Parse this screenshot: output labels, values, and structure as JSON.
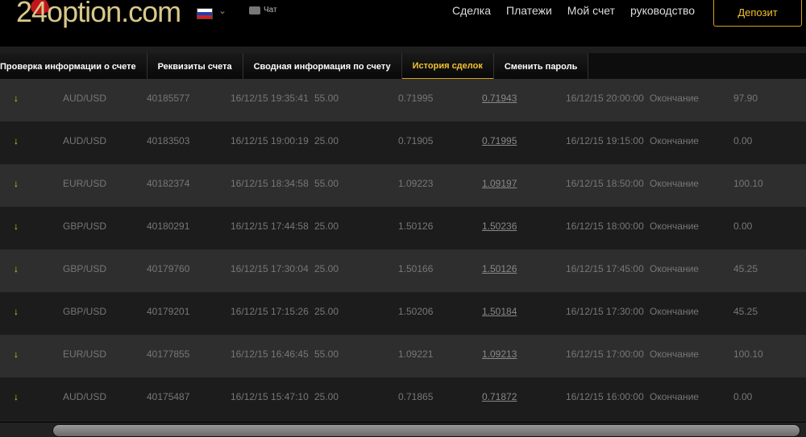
{
  "header": {
    "logo": "24option.com",
    "language_flag": "ru",
    "chat": "Чат",
    "nav": [
      "Сделка",
      "Платежи",
      "Мой счет",
      "руководство"
    ],
    "deposit": "Депозит"
  },
  "tabs": [
    {
      "label": "Проверка информации о счете",
      "active": false
    },
    {
      "label": "Реквизиты счета",
      "active": false
    },
    {
      "label": "Сводная информация по счету",
      "active": false
    },
    {
      "label": "История сделок",
      "active": true
    },
    {
      "label": "Сменить пароль",
      "active": false
    }
  ],
  "colors": {
    "accent": "#f2c230",
    "header_bg": "#000000"
  },
  "trades": [
    {
      "direction": "down",
      "asset": "AUD/USD",
      "id": "40185577",
      "open_time": "16/12/15 19:35:41",
      "amount": "55.00",
      "open_rate": "0.71995",
      "close_rate": "0.71943",
      "expiry": "16/12/15 20:00:00",
      "type": "Окончание",
      "payout": "97.90"
    },
    {
      "direction": "down",
      "asset": "AUD/USD",
      "id": "40183503",
      "open_time": "16/12/15 19:00:19",
      "amount": "25.00",
      "open_rate": "0.71905",
      "close_rate": "0.71995",
      "expiry": "16/12/15 19:15:00",
      "type": "Окончание",
      "payout": "0.00"
    },
    {
      "direction": "down",
      "asset": "EUR/USD",
      "id": "40182374",
      "open_time": "16/12/15 18:34:58",
      "amount": "55.00",
      "open_rate": "1.09223",
      "close_rate": "1.09197",
      "expiry": "16/12/15 18:50:00",
      "type": "Окончание",
      "payout": "100.10"
    },
    {
      "direction": "down",
      "asset": "GBP/USD",
      "id": "40180291",
      "open_time": "16/12/15 17:44:58",
      "amount": "25.00",
      "open_rate": "1.50126",
      "close_rate": "1.50236",
      "expiry": "16/12/15 18:00:00",
      "type": "Окончание",
      "payout": "0.00"
    },
    {
      "direction": "down",
      "asset": "GBP/USD",
      "id": "40179760",
      "open_time": "16/12/15 17:30:04",
      "amount": "25.00",
      "open_rate": "1.50166",
      "close_rate": "1.50126",
      "expiry": "16/12/15 17:45:00",
      "type": "Окончание",
      "payout": "45.25"
    },
    {
      "direction": "down",
      "asset": "GBP/USD",
      "id": "40179201",
      "open_time": "16/12/15 17:15:26",
      "amount": "25.00",
      "open_rate": "1.50206",
      "close_rate": "1.50184",
      "expiry": "16/12/15 17:30:00",
      "type": "Окончание",
      "payout": "45.25"
    },
    {
      "direction": "down",
      "asset": "EUR/USD",
      "id": "40177855",
      "open_time": "16/12/15 16:46:45",
      "amount": "55.00",
      "open_rate": "1.09221",
      "close_rate": "1.09213",
      "expiry": "16/12/15 17:00:00",
      "type": "Окончание",
      "payout": "100.10"
    },
    {
      "direction": "down",
      "asset": "AUD/USD",
      "id": "40175487",
      "open_time": "16/12/15 15:47:10",
      "amount": "25.00",
      "open_rate": "0.71865",
      "close_rate": "0.71872",
      "expiry": "16/12/15 16:00:00",
      "type": "Окончание",
      "payout": "0.00"
    }
  ]
}
